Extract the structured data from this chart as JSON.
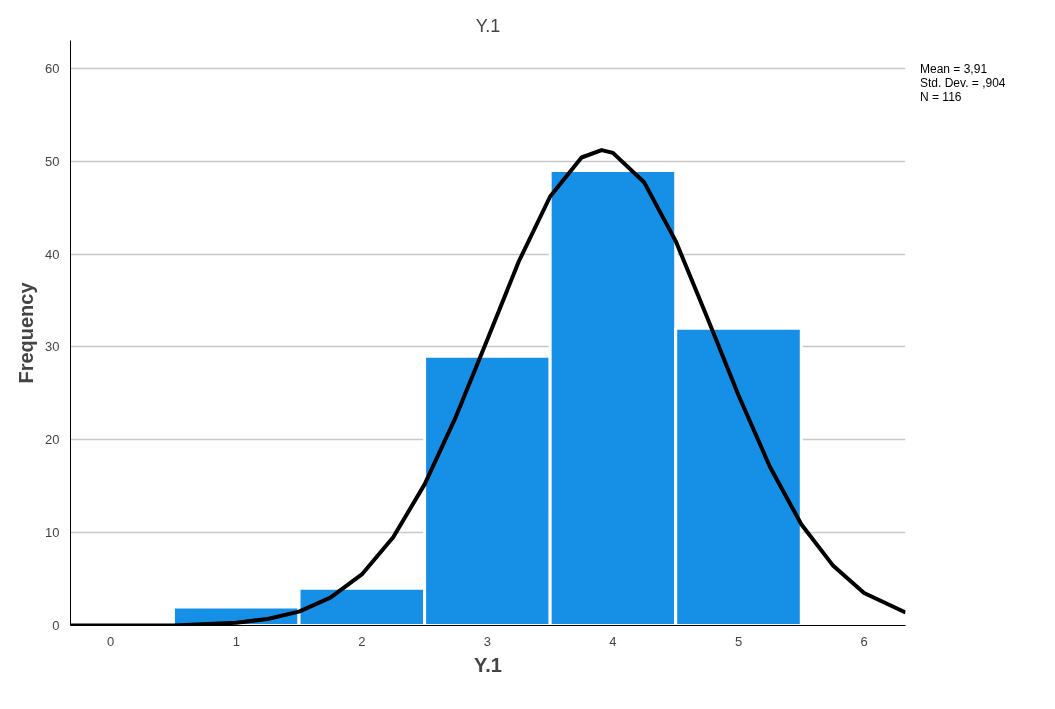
{
  "chart_data": {
    "type": "histogram",
    "title": "Y.1",
    "xlabel": "Y.1",
    "ylabel": "Frequency",
    "bins": [
      0.5,
      1.5,
      2.5,
      3.5,
      4.5,
      5.5
    ],
    "values": [
      2,
      4,
      29,
      49,
      32
    ],
    "color": "#1590e6",
    "series": [
      {
        "type": "line",
        "color": "#000000",
        "x": [
          -0.32,
          0,
          0.5,
          1,
          1.25,
          1.5,
          1.75,
          2,
          2.25,
          2.5,
          2.75,
          3,
          3.25,
          3.5,
          3.75,
          3.91,
          4,
          4.25,
          4.5,
          4.75,
          5,
          5.25,
          5.5,
          5.75,
          6,
          6.33
        ],
        "values": [
          0,
          0,
          0,
          0.3,
          0.7,
          1.5,
          3,
          5.5,
          9.5,
          15.2,
          22.5,
          30.8,
          39.2,
          46.2,
          50.4,
          51.2,
          50.9,
          47.7,
          41.4,
          33.2,
          24.8,
          17.1,
          10.9,
          6.5,
          3.5,
          1.4
        ]
      }
    ],
    "xlim": [
      -0.32,
      6.33
    ],
    "ylim": [
      0,
      63
    ],
    "xticks": [
      0,
      1,
      2,
      3,
      4,
      5,
      6
    ],
    "yticks": [
      0,
      10,
      20,
      30,
      40,
      50,
      60
    ],
    "grid": "y",
    "annotations": [
      "Mean = 3,91",
      "Std. Dev. = ,904",
      "N = 116"
    ]
  }
}
